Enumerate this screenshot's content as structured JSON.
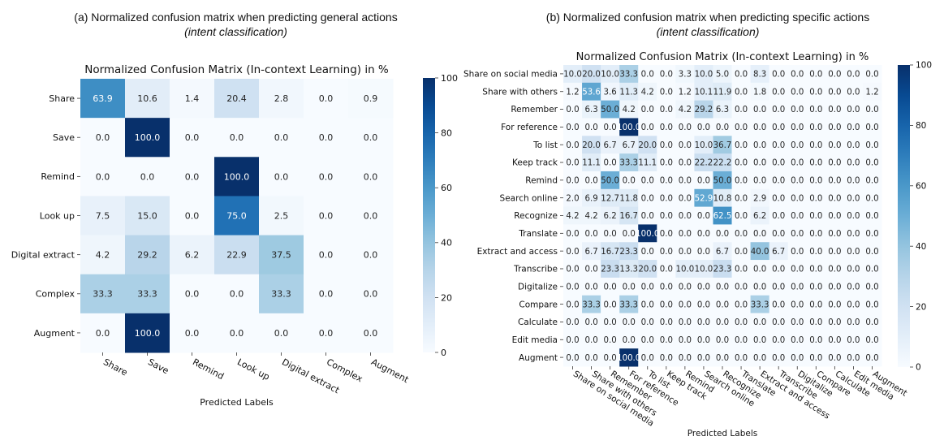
{
  "figure": {
    "panel_a_caption": "(a) Normalized confusion matrix when predicting general actions",
    "panel_a_subcaption": "(intent classification)",
    "panel_b_caption": "(b) Normalized confusion matrix when predicting specific actions",
    "panel_b_subcaption": "(intent classification)"
  },
  "chart_data": [
    {
      "type": "heatmap",
      "title": "Normalized Confusion Matrix (In-context Learning) in %",
      "xlabel": "Predicted Labels",
      "ylabel": "",
      "row_labels": [
        "Share",
        "Save",
        "Remind",
        "Look up",
        "Digital extract",
        "Complex",
        "Augment"
      ],
      "col_labels": [
        "Share",
        "Save",
        "Remind",
        "Look up",
        "Digital extract",
        "Complex",
        "Augment"
      ],
      "values": [
        [
          63.9,
          10.6,
          1.4,
          20.4,
          2.8,
          0.0,
          0.9
        ],
        [
          0.0,
          100.0,
          0.0,
          0.0,
          0.0,
          0.0,
          0.0
        ],
        [
          0.0,
          0.0,
          0.0,
          100.0,
          0.0,
          0.0,
          0.0
        ],
        [
          7.5,
          15.0,
          0.0,
          75.0,
          2.5,
          0.0,
          0.0
        ],
        [
          4.2,
          29.2,
          6.2,
          22.9,
          37.5,
          0.0,
          0.0
        ],
        [
          33.3,
          33.3,
          0.0,
          0.0,
          33.3,
          0.0,
          0.0
        ],
        [
          0.0,
          100.0,
          0.0,
          0.0,
          0.0,
          0.0,
          0.0
        ]
      ],
      "value_format": "0.1f",
      "colorbar": {
        "range": [
          0,
          100
        ],
        "ticks": [
          0,
          20,
          40,
          60,
          80,
          100
        ],
        "colormap": "Blues"
      }
    },
    {
      "type": "heatmap",
      "title": "Normalized Confusion Matrix (In-context Learning) in %",
      "xlabel": "Predicted Labels",
      "ylabel": "",
      "row_labels": [
        "Share on social media",
        "Share with others",
        "Remember",
        "For reference",
        "To list",
        "Keep track",
        "Remind",
        "Search online",
        "Recognize",
        "Translate",
        "Extract and access",
        "Transcribe",
        "Digitalize",
        "Compare",
        "Calculate",
        "Edit media",
        "Augment"
      ],
      "col_labels": [
        "Share on social media",
        "Share with others",
        "Remember",
        "For reference",
        "To list",
        "Keep track",
        "Remind",
        "Search online",
        "Recognize",
        "Translate",
        "Extract and access",
        "Transcribe",
        "Digitalize",
        "Compare",
        "Calculate",
        "Edit media",
        "Augment"
      ],
      "values": [
        [
          10.0,
          20.0,
          10.0,
          33.3,
          0.0,
          0.0,
          3.3,
          10.0,
          5.0,
          0.0,
          8.3,
          0.0,
          0.0,
          0.0,
          0.0,
          0.0,
          0.0
        ],
        [
          1.2,
          53.6,
          3.6,
          11.3,
          4.2,
          0.0,
          1.2,
          10.1,
          11.9,
          0.0,
          1.8,
          0.0,
          0.0,
          0.0,
          0.0,
          0.0,
          1.2
        ],
        [
          0.0,
          6.3,
          50.0,
          4.2,
          0.0,
          0.0,
          4.2,
          29.2,
          6.3,
          0.0,
          0.0,
          0.0,
          0.0,
          0.0,
          0.0,
          0.0,
          0.0
        ],
        [
          0.0,
          0.0,
          0.0,
          100.0,
          0.0,
          0.0,
          0.0,
          0.0,
          0.0,
          0.0,
          0.0,
          0.0,
          0.0,
          0.0,
          0.0,
          0.0,
          0.0
        ],
        [
          0.0,
          20.0,
          6.7,
          6.7,
          20.0,
          0.0,
          0.0,
          10.0,
          36.7,
          0.0,
          0.0,
          0.0,
          0.0,
          0.0,
          0.0,
          0.0,
          0.0
        ],
        [
          0.0,
          11.1,
          0.0,
          33.3,
          11.1,
          0.0,
          0.0,
          22.2,
          22.2,
          0.0,
          0.0,
          0.0,
          0.0,
          0.0,
          0.0,
          0.0,
          0.0
        ],
        [
          0.0,
          0.0,
          50.0,
          0.0,
          0.0,
          0.0,
          0.0,
          0.0,
          50.0,
          0.0,
          0.0,
          0.0,
          0.0,
          0.0,
          0.0,
          0.0,
          0.0
        ],
        [
          2.0,
          6.9,
          12.7,
          11.8,
          0.0,
          0.0,
          0.0,
          52.9,
          10.8,
          0.0,
          2.9,
          0.0,
          0.0,
          0.0,
          0.0,
          0.0,
          0.0
        ],
        [
          4.2,
          4.2,
          6.2,
          16.7,
          0.0,
          0.0,
          0.0,
          0.0,
          62.5,
          0.0,
          6.2,
          0.0,
          0.0,
          0.0,
          0.0,
          0.0,
          0.0
        ],
        [
          0.0,
          0.0,
          0.0,
          0.0,
          100.0,
          0.0,
          0.0,
          0.0,
          0.0,
          0.0,
          0.0,
          0.0,
          0.0,
          0.0,
          0.0,
          0.0,
          0.0
        ],
        [
          0.0,
          6.7,
          16.7,
          23.3,
          0.0,
          0.0,
          0.0,
          0.0,
          6.7,
          0.0,
          40.0,
          6.7,
          0.0,
          0.0,
          0.0,
          0.0,
          0.0
        ],
        [
          0.0,
          0.0,
          23.3,
          13.3,
          20.0,
          0.0,
          10.0,
          10.0,
          23.3,
          0.0,
          0.0,
          0.0,
          0.0,
          0.0,
          0.0,
          0.0,
          0.0
        ],
        [
          0.0,
          0.0,
          0.0,
          0.0,
          0.0,
          0.0,
          0.0,
          0.0,
          0.0,
          0.0,
          0.0,
          0.0,
          0.0,
          0.0,
          0.0,
          0.0,
          0.0
        ],
        [
          0.0,
          33.3,
          0.0,
          33.3,
          0.0,
          0.0,
          0.0,
          0.0,
          0.0,
          0.0,
          33.3,
          0.0,
          0.0,
          0.0,
          0.0,
          0.0,
          0.0
        ],
        [
          0.0,
          0.0,
          0.0,
          0.0,
          0.0,
          0.0,
          0.0,
          0.0,
          0.0,
          0.0,
          0.0,
          0.0,
          0.0,
          0.0,
          0.0,
          0.0,
          0.0
        ],
        [
          0.0,
          0.0,
          0.0,
          0.0,
          0.0,
          0.0,
          0.0,
          0.0,
          0.0,
          0.0,
          0.0,
          0.0,
          0.0,
          0.0,
          0.0,
          0.0,
          0.0
        ],
        [
          0.0,
          0.0,
          0.0,
          100.0,
          0.0,
          0.0,
          0.0,
          0.0,
          0.0,
          0.0,
          0.0,
          0.0,
          0.0,
          0.0,
          0.0,
          0.0,
          0.0
        ]
      ],
      "value_format": "0.1f",
      "colorbar": {
        "range": [
          0,
          100
        ],
        "ticks": [
          0,
          20,
          40,
          60,
          80,
          100
        ],
        "colormap": "Blues"
      }
    }
  ]
}
